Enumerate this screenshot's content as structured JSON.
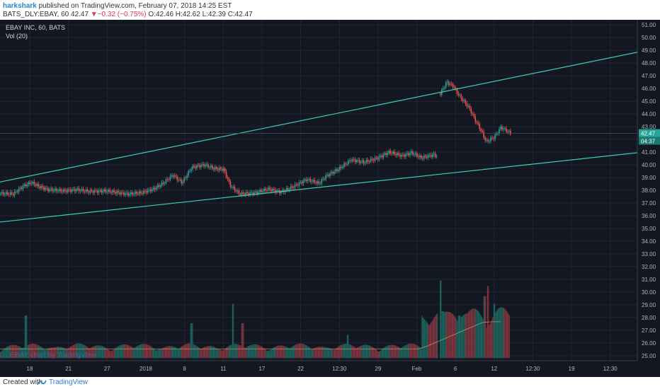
{
  "header": {
    "username": "harkshark",
    "published_text": " published on TradingView.com, February 07, 2018 14:25 EST",
    "symbol_text": "BATS_DLY:EBAY, 60  42.47",
    "change_text": "−0.32 (−0.75%)",
    "ohlc_text": " O:42.46 H:42.62 L:42.39 C:42.47",
    "arrow": "▼"
  },
  "footer": {
    "created_with": "Created with",
    "brand": "TradingView"
  },
  "chart_data": {
    "type": "candlestick",
    "legend_title": "EBAY INC, 60, BATS",
    "legend_indicator": "Vol (20)",
    "watermark": "EBAY chart by TradingView",
    "price_ticks": [
      "25.00",
      "26.00",
      "27.00",
      "28.00",
      "29.00",
      "30.00",
      "31.00",
      "32.00",
      "33.00",
      "34.00",
      "35.00",
      "36.00",
      "37.00",
      "38.00",
      "39.00",
      "40.00",
      "41.00",
      "42.00",
      "43.00",
      "44.00",
      "45.00",
      "46.00",
      "47.00",
      "48.00",
      "49.00",
      "50.00",
      "51.00"
    ],
    "ylim": [
      24.6,
      51.4
    ],
    "time_ticks": [
      "18",
      "21",
      "27",
      "2018",
      "8",
      "11",
      "17",
      "22",
      "12:30",
      "29",
      "Feb",
      "6",
      "12",
      "12:30",
      "19",
      "12:30"
    ],
    "last_price_label": "42.47",
    "countdown_label": "04:37",
    "last_price": 42.47,
    "trendlines": [
      {
        "name": "upper",
        "from": [
          0,
          38.65
        ],
        "to": [
          1,
          48.85
        ]
      },
      {
        "name": "lower",
        "from": [
          0,
          35.5
        ],
        "to": [
          1,
          40.95
        ]
      }
    ],
    "close_path": [
      [
        0.0,
        37.75
      ],
      [
        0.02,
        37.72
      ],
      [
        0.035,
        38.3
      ],
      [
        0.048,
        38.62
      ],
      [
        0.06,
        38.3
      ],
      [
        0.075,
        38.05
      ],
      [
        0.1,
        37.95
      ],
      [
        0.12,
        38.05
      ],
      [
        0.14,
        37.9
      ],
      [
        0.165,
        37.95
      ],
      [
        0.2,
        37.7
      ],
      [
        0.22,
        37.8
      ],
      [
        0.24,
        38.1
      ],
      [
        0.255,
        38.55
      ],
      [
        0.27,
        39.2
      ],
      [
        0.285,
        38.6
      ],
      [
        0.3,
        39.8
      ],
      [
        0.32,
        40.0
      ],
      [
        0.335,
        39.7
      ],
      [
        0.35,
        39.65
      ],
      [
        0.36,
        38.4
      ],
      [
        0.375,
        37.7
      ],
      [
        0.4,
        37.8
      ],
      [
        0.42,
        38.1
      ],
      [
        0.44,
        37.85
      ],
      [
        0.46,
        38.3
      ],
      [
        0.48,
        38.85
      ],
      [
        0.5,
        38.55
      ],
      [
        0.51,
        39.1
      ],
      [
        0.53,
        39.65
      ],
      [
        0.55,
        40.4
      ],
      [
        0.57,
        40.2
      ],
      [
        0.59,
        40.5
      ],
      [
        0.61,
        41.0
      ],
      [
        0.63,
        40.7
      ],
      [
        0.645,
        40.95
      ],
      [
        0.66,
        40.55
      ],
      [
        0.68,
        40.8
      ],
      [
        0.686,
        40.65
      ]
    ],
    "close_path_2": [
      [
        0.69,
        45.6
      ],
      [
        0.7,
        46.5
      ],
      [
        0.71,
        46.2
      ],
      [
        0.72,
        45.4
      ],
      [
        0.735,
        44.5
      ],
      [
        0.745,
        43.5
      ],
      [
        0.755,
        42.6
      ],
      [
        0.762,
        41.8
      ],
      [
        0.775,
        42.2
      ],
      [
        0.785,
        42.95
      ],
      [
        0.795,
        42.65
      ],
      [
        0.8,
        42.47
      ]
    ],
    "volume": {
      "baseline": 24.8,
      "scale_top": 30.9,
      "peaks": [
        [
          0.04,
          0.55
        ],
        [
          0.3,
          0.45
        ],
        [
          0.365,
          0.7
        ],
        [
          0.38,
          0.45
        ],
        [
          0.545,
          0.3
        ],
        [
          0.69,
          1.0
        ],
        [
          0.7,
          0.6
        ],
        [
          0.72,
          0.55
        ],
        [
          0.76,
          0.8
        ],
        [
          0.775,
          0.7
        ],
        [
          0.765,
          0.93
        ]
      ]
    },
    "colors": {
      "up": "#26a69a",
      "down": "#ef5350",
      "trend": "#3ad0b5",
      "grid": "#232633",
      "axis_text": "#b2b5be",
      "bg": "#131722"
    }
  }
}
